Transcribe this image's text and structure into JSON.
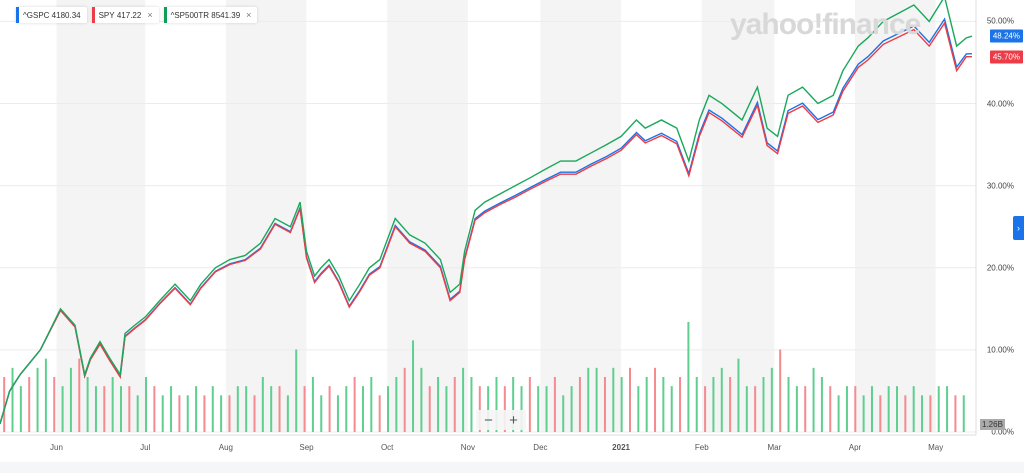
{
  "legend": [
    {
      "symbol": "^GSPC",
      "value": "4180.34",
      "color": "#1a73e8",
      "closable": false
    },
    {
      "symbol": "SPY",
      "value": "417.22",
      "color": "#ec3c47",
      "closable": true
    },
    {
      "symbol": "^SP500TR",
      "value": "8541.39",
      "color": "#0f9d58",
      "closable": true
    }
  ],
  "close_icon": "×",
  "logo": "yahoo!finance",
  "zoom_controls": {
    "minus": "−",
    "plus": "+"
  },
  "nav_arrow": "›",
  "colors": {
    "green": "#1aa85c",
    "red": "#ec3c47",
    "blue": "#1a73e8",
    "vol_green": "#5fcf90",
    "vol_red": "#f58a8f"
  },
  "chart_data": {
    "type": "line",
    "ylim": [
      0,
      52
    ],
    "yticks": [
      {
        "v": 50,
        "label": "50.00%"
      },
      {
        "v": 40,
        "label": "40.00%"
      },
      {
        "v": 30,
        "label": "30.00%"
      },
      {
        "v": 20,
        "label": "20.00%"
      },
      {
        "v": 10,
        "label": "10.00%"
      },
      {
        "v": 0,
        "label": "0.00%"
      }
    ],
    "xlim": [
      0,
      12.1
    ],
    "xticks": [
      {
        "v": 0.7,
        "label": "Jun"
      },
      {
        "v": 1.8,
        "label": "Jul"
      },
      {
        "v": 2.8,
        "label": "Aug"
      },
      {
        "v": 3.8,
        "label": "Sep"
      },
      {
        "v": 4.8,
        "label": "Oct"
      },
      {
        "v": 5.8,
        "label": "Nov"
      },
      {
        "v": 6.7,
        "label": "Dec"
      },
      {
        "v": 7.7,
        "label": "2021",
        "bold": true
      },
      {
        "v": 8.7,
        "label": "Feb"
      },
      {
        "v": 9.6,
        "label": "Mar"
      },
      {
        "v": 10.6,
        "label": "Apr"
      },
      {
        "v": 11.6,
        "label": "May"
      }
    ],
    "shaded_months": [
      [
        0.7,
        1.8
      ],
      [
        2.8,
        3.8
      ],
      [
        4.8,
        5.8
      ],
      [
        6.7,
        7.7
      ],
      [
        8.7,
        9.6
      ],
      [
        10.6,
        11.6
      ]
    ],
    "x": [
      0,
      0.12,
      0.25,
      0.5,
      0.75,
      0.93,
      1.05,
      1.12,
      1.24,
      1.36,
      1.49,
      1.55,
      1.67,
      1.8,
      1.98,
      2.17,
      2.36,
      2.49,
      2.67,
      2.85,
      3.04,
      3.23,
      3.41,
      3.6,
      3.72,
      3.8,
      3.9,
      3.98,
      4.08,
      4.2,
      4.33,
      4.46,
      4.58,
      4.71,
      4.9,
      5.08,
      5.27,
      5.46,
      5.58,
      5.7,
      5.76,
      5.89,
      6.01,
      6.2,
      6.39,
      6.58,
      6.76,
      6.95,
      7.14,
      7.33,
      7.52,
      7.7,
      7.89,
      8.0,
      8.2,
      8.39,
      8.54,
      8.67,
      8.79,
      8.95,
      9.2,
      9.39,
      9.51,
      9.64,
      9.77,
      9.95,
      10.14,
      10.33,
      10.45,
      10.64,
      10.76,
      10.95,
      11.14,
      11.33,
      11.52,
      11.71,
      11.86,
      11.98,
      12.05
    ],
    "series": [
      {
        "name": "^SP500TR",
        "color": "#1aa85c",
        "values": [
          1,
          5,
          7,
          10,
          15,
          13,
          7,
          9,
          11,
          9,
          7,
          12,
          13,
          14,
          16,
          18,
          16,
          18,
          20,
          21,
          21.5,
          23,
          26,
          25,
          28,
          22,
          19,
          20,
          21,
          19,
          16,
          18,
          20,
          21,
          26,
          24,
          23,
          21,
          17,
          18,
          22,
          27,
          28,
          29,
          30,
          31,
          32,
          33,
          33,
          34,
          35,
          36,
          38,
          37,
          38,
          37,
          33,
          38,
          41,
          40,
          38,
          42,
          37,
          36,
          41,
          42,
          40,
          41,
          44,
          47,
          48,
          50,
          51,
          52,
          50,
          53,
          47,
          48,
          48.2
        ]
      },
      {
        "name": "SPY",
        "color": "#ec3c47",
        "values": [
          1,
          5,
          7,
          10,
          14.8,
          12.8,
          6.8,
          8.8,
          10.7,
          8.7,
          6.7,
          11.6,
          12.6,
          13.6,
          15.6,
          17.5,
          15.5,
          17.5,
          19.5,
          20.4,
          20.9,
          22.3,
          25.3,
          24.3,
          27.2,
          21.2,
          18.2,
          19.2,
          20.2,
          18.2,
          15.2,
          17.1,
          19.1,
          20,
          25,
          23,
          22,
          20,
          16,
          17,
          21,
          25.8,
          26.7,
          27.7,
          28.6,
          29.6,
          30.5,
          31.4,
          31.4,
          32.4,
          33.3,
          34.3,
          36.2,
          35.2,
          36.1,
          35.1,
          31.2,
          36,
          38.9,
          37.9,
          35.9,
          39.8,
          34.9,
          33.9,
          38.8,
          39.7,
          37.7,
          38.6,
          41.5,
          44.4,
          45.3,
          47.2,
          48.1,
          49,
          47,
          49.8,
          44,
          45.7,
          45.7
        ]
      }
    ],
    "last_values": [
      {
        "label": "48.24%",
        "value": 48.24,
        "color": "#1a73e8"
      },
      {
        "label": "45.70%",
        "value": 45.7,
        "color": "#ec3c47"
      }
    ],
    "volume": {
      "label": "1.26B",
      "ymax": 12,
      "values": [
        6,
        7,
        5,
        6,
        7,
        8,
        6,
        5,
        7,
        8,
        6,
        5,
        5,
        6,
        5,
        5,
        4,
        6,
        5,
        4,
        5,
        4,
        4,
        5,
        4,
        5,
        4,
        4,
        5,
        5,
        4,
        6,
        5,
        5,
        4,
        9,
        5,
        6,
        4,
        5,
        4,
        5,
        6,
        5,
        6,
        4,
        5,
        6,
        7,
        10,
        7,
        5,
        6,
        5,
        6,
        7,
        6,
        5,
        5,
        6,
        5,
        6,
        5,
        6,
        5,
        5,
        6,
        4,
        5,
        6,
        7,
        7,
        6,
        7,
        6,
        7,
        5,
        6,
        7,
        6,
        5,
        6,
        12,
        6,
        5,
        6,
        7,
        6,
        8,
        5,
        5,
        6,
        7,
        9,
        6,
        5,
        5,
        7,
        6,
        5,
        4,
        5,
        5,
        4,
        5,
        4,
        5,
        5,
        4,
        5,
        4,
        4,
        5,
        5,
        4,
        4
      ]
    }
  }
}
